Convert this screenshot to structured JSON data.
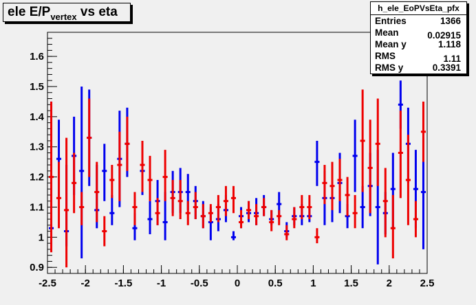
{
  "title": {
    "main": "ele E/P",
    "sub": "vertex",
    "suffix": " vs eta"
  },
  "stats": {
    "name": "h_ele_EoPVsEta_pfx",
    "rows": [
      {
        "label": "Entries",
        "value": "1366"
      },
      {
        "label": "Mean",
        "value": "0.02915"
      },
      {
        "label": "Mean y",
        "value": "1.118"
      },
      {
        "label": "RMS",
        "value": "1.11"
      },
      {
        "label": "RMS y",
        "value": "0.3391"
      }
    ]
  },
  "chart_data": {
    "type": "scatter",
    "xlim": [
      -2.5,
      2.5
    ],
    "ylim": [
      0.88,
      1.68
    ],
    "xticks": [
      -2.5,
      -2,
      -1.5,
      -1,
      -0.5,
      0,
      0.5,
      1,
      1.5,
      2,
      2.5
    ],
    "xtick_labels": [
      "-2.5",
      "-2",
      "-1.5",
      "-1",
      "-0.5",
      "0",
      "0.5",
      "1",
      "1.5",
      "2",
      "2.5"
    ],
    "yticks": [
      0.9,
      1,
      1.1,
      1.2,
      1.3,
      1.4,
      1.5,
      1.6
    ],
    "ytick_labels": [
      "0.9",
      "1",
      "1.1",
      "1.2",
      "1.3",
      "1.4",
      "1.5",
      "1.6"
    ],
    "colors": {
      "blue": "#0000ee",
      "red": "#ee0000",
      "frame_bg": "#f0f0f0"
    },
    "series": [
      {
        "color": "blue",
        "points": [
          {
            "x": -2.45,
            "y": 1.03,
            "lo": 0.97,
            "hi": 1.45
          },
          {
            "x": -2.35,
            "y": 1.26,
            "lo": 1.13,
            "hi": 1.39
          },
          {
            "x": -2.25,
            "y": 1.02,
            "lo": 0.97,
            "hi": 1.24
          },
          {
            "x": -2.15,
            "y": 1.27,
            "lo": 1.14,
            "hi": 1.4
          },
          {
            "x": -2.05,
            "y": 1.22,
            "lo": 0.93,
            "hi": 1.5
          },
          {
            "x": -1.95,
            "y": 1.33,
            "lo": 1.17,
            "hi": 1.49
          },
          {
            "x": -1.85,
            "y": 1.09,
            "lo": 1.03,
            "hi": 1.24
          },
          {
            "x": -1.75,
            "y": 1.22,
            "lo": 1.12,
            "hi": 1.31
          },
          {
            "x": -1.65,
            "y": 1.08,
            "lo": 1.04,
            "hi": 1.14
          },
          {
            "x": -1.55,
            "y": 1.26,
            "lo": 1.1,
            "hi": 1.42
          },
          {
            "x": -1.45,
            "y": 1.31,
            "lo": 1.2,
            "hi": 1.43
          },
          {
            "x": -1.35,
            "y": 1.03,
            "lo": 0.99,
            "hi": 1.08
          },
          {
            "x": -1.25,
            "y": 1.22,
            "lo": 1.14,
            "hi": 1.29
          },
          {
            "x": -1.15,
            "y": 1.06,
            "lo": 1.01,
            "hi": 1.12
          },
          {
            "x": -1.05,
            "y": 1.12,
            "lo": 1.04,
            "hi": 1.19
          },
          {
            "x": -0.95,
            "y": 1.05,
            "lo": 0.99,
            "hi": 1.15
          },
          {
            "x": -0.85,
            "y": 1.15,
            "lo": 1.08,
            "hi": 1.22
          },
          {
            "x": -0.75,
            "y": 1.15,
            "lo": 1.08,
            "hi": 1.23
          },
          {
            "x": -0.65,
            "y": 1.15,
            "lo": 1.09,
            "hi": 1.21
          },
          {
            "x": -0.55,
            "y": 1.12,
            "lo": 1.06,
            "hi": 1.17
          },
          {
            "x": -0.45,
            "y": 1.07,
            "lo": 1.03,
            "hi": 1.12
          },
          {
            "x": -0.35,
            "y": 1.05,
            "lo": 0.99,
            "hi": 1.1
          },
          {
            "x": -0.25,
            "y": 1.06,
            "lo": 1.02,
            "hi": 1.11
          },
          {
            "x": -0.15,
            "y": 1.09,
            "lo": 1.05,
            "hi": 1.14
          },
          {
            "x": -0.05,
            "y": 1.0,
            "lo": 0.99,
            "hi": 1.02
          },
          {
            "x": 0.05,
            "y": 1.07,
            "lo": 1.03,
            "hi": 1.1
          },
          {
            "x": 0.15,
            "y": 1.08,
            "lo": 1.05,
            "hi": 1.12
          },
          {
            "x": 0.25,
            "y": 1.08,
            "lo": 1.04,
            "hi": 1.13
          },
          {
            "x": 0.35,
            "y": 1.1,
            "lo": 1.07,
            "hi": 1.14
          },
          {
            "x": 0.45,
            "y": 1.06,
            "lo": 1.04,
            "hi": 1.09
          },
          {
            "x": 0.55,
            "y": 1.11,
            "lo": 1.06,
            "hi": 1.15
          },
          {
            "x": 0.65,
            "y": 1.02,
            "lo": 1.0,
            "hi": 1.05
          },
          {
            "x": 0.75,
            "y": 1.07,
            "lo": 1.04,
            "hi": 1.1
          },
          {
            "x": 0.85,
            "y": 1.07,
            "lo": 1.04,
            "hi": 1.11
          },
          {
            "x": 0.95,
            "y": 1.07,
            "lo": 1.05,
            "hi": 1.1
          },
          {
            "x": 1.05,
            "y": 1.25,
            "lo": 1.17,
            "hi": 1.32
          },
          {
            "x": 1.15,
            "y": 1.13,
            "lo": 1.04,
            "hi": 1.22
          },
          {
            "x": 1.25,
            "y": 1.13,
            "lo": 1.05,
            "hi": 1.22
          },
          {
            "x": 1.35,
            "y": 1.18,
            "lo": 1.08,
            "hi": 1.28
          },
          {
            "x": 1.45,
            "y": 1.07,
            "lo": 1.03,
            "hi": 1.11
          },
          {
            "x": 1.55,
            "y": 1.27,
            "lo": 1.15,
            "hi": 1.39
          },
          {
            "x": 1.65,
            "y": 1.1,
            "lo": 1.03,
            "hi": 1.17
          },
          {
            "x": 1.75,
            "y": 1.17,
            "lo": 1.07,
            "hi": 1.28
          },
          {
            "x": 1.85,
            "y": 1.1,
            "lo": 0.91,
            "hi": 1.29
          },
          {
            "x": 1.95,
            "y": 1.08,
            "lo": 1.01,
            "hi": 1.15
          },
          {
            "x": 2.05,
            "y": 1.16,
            "lo": 1.03,
            "hi": 1.28
          },
          {
            "x": 2.15,
            "y": 1.44,
            "lo": 1.36,
            "hi": 1.52
          },
          {
            "x": 2.25,
            "y": 1.31,
            "lo": 1.18,
            "hi": 1.43
          },
          {
            "x": 2.35,
            "y": 1.16,
            "lo": 1.03,
            "hi": 1.29
          },
          {
            "x": 2.45,
            "y": 1.15,
            "lo": 0.96,
            "hi": 1.33
          }
        ]
      },
      {
        "color": "red",
        "points": [
          {
            "x": -2.45,
            "y": 1.2,
            "lo": 0.95,
            "hi": 1.45
          },
          {
            "x": -2.35,
            "y": 1.13,
            "lo": 1.03,
            "hi": 1.25
          },
          {
            "x": -2.25,
            "y": 1.09,
            "lo": 0.9,
            "hi": 1.33
          },
          {
            "x": -2.15,
            "y": 1.18,
            "lo": 1.08,
            "hi": 1.28
          },
          {
            "x": -2.05,
            "y": 1.1,
            "lo": 1.04,
            "hi": 1.15
          },
          {
            "x": -1.95,
            "y": 1.33,
            "lo": 1.2,
            "hi": 1.46
          },
          {
            "x": -1.85,
            "y": 1.15,
            "lo": 1.05,
            "hi": 1.25
          },
          {
            "x": -1.75,
            "y": 1.02,
            "lo": 0.97,
            "hi": 1.07
          },
          {
            "x": -1.65,
            "y": 1.19,
            "lo": 1.13,
            "hi": 1.24
          },
          {
            "x": -1.55,
            "y": 1.24,
            "lo": 1.12,
            "hi": 1.35
          },
          {
            "x": -1.45,
            "y": 1.31,
            "lo": 1.22,
            "hi": 1.4
          },
          {
            "x": -1.35,
            "y": 1.1,
            "lo": 1.04,
            "hi": 1.15
          },
          {
            "x": -1.25,
            "y": 1.24,
            "lo": 1.15,
            "hi": 1.32
          },
          {
            "x": -1.15,
            "y": 1.19,
            "lo": 1.12,
            "hi": 1.27
          },
          {
            "x": -1.05,
            "y": 1.08,
            "lo": 1.04,
            "hi": 1.13
          },
          {
            "x": -0.95,
            "y": 1.2,
            "lo": 1.12,
            "hi": 1.29
          },
          {
            "x": -0.85,
            "y": 1.13,
            "lo": 1.07,
            "hi": 1.19
          },
          {
            "x": -0.75,
            "y": 1.12,
            "lo": 1.06,
            "hi": 1.19
          },
          {
            "x": -0.65,
            "y": 1.08,
            "lo": 1.04,
            "hi": 1.12
          },
          {
            "x": -0.55,
            "y": 1.1,
            "lo": 1.06,
            "hi": 1.15
          },
          {
            "x": -0.45,
            "y": 1.07,
            "lo": 1.03,
            "hi": 1.11
          },
          {
            "x": -0.35,
            "y": 1.08,
            "lo": 1.05,
            "hi": 1.11
          },
          {
            "x": -0.25,
            "y": 1.1,
            "lo": 1.05,
            "hi": 1.14
          },
          {
            "x": -0.15,
            "y": 1.12,
            "lo": 1.07,
            "hi": 1.17
          },
          {
            "x": -0.05,
            "y": 1.13,
            "lo": 1.08,
            "hi": 1.17
          },
          {
            "x": 0.05,
            "y": 1.05,
            "lo": 1.03,
            "hi": 1.09
          },
          {
            "x": 0.15,
            "y": 1.09,
            "lo": 1.06,
            "hi": 1.12
          },
          {
            "x": 0.25,
            "y": 1.07,
            "lo": 1.04,
            "hi": 1.11
          },
          {
            "x": 0.35,
            "y": 1.1,
            "lo": 1.07,
            "hi": 1.13
          },
          {
            "x": 0.45,
            "y": 1.05,
            "lo": 1.02,
            "hi": 1.09
          },
          {
            "x": 0.55,
            "y": 1.07,
            "lo": 1.04,
            "hi": 1.09
          },
          {
            "x": 0.65,
            "y": 1.01,
            "lo": 0.99,
            "hi": 1.04
          },
          {
            "x": 0.75,
            "y": 1.06,
            "lo": 1.03,
            "hi": 1.1
          },
          {
            "x": 0.85,
            "y": 1.1,
            "lo": 1.06,
            "hi": 1.14
          },
          {
            "x": 0.95,
            "y": 1.1,
            "lo": 1.06,
            "hi": 1.14
          },
          {
            "x": 1.05,
            "y": 1.0,
            "lo": 0.98,
            "hi": 1.03
          },
          {
            "x": 1.15,
            "y": 1.18,
            "lo": 1.11,
            "hi": 1.24
          },
          {
            "x": 1.25,
            "y": 1.17,
            "lo": 1.09,
            "hi": 1.25
          },
          {
            "x": 1.35,
            "y": 1.19,
            "lo": 1.12,
            "hi": 1.26
          },
          {
            "x": 1.45,
            "y": 1.14,
            "lo": 1.07,
            "hi": 1.2
          },
          {
            "x": 1.55,
            "y": 1.08,
            "lo": 1.03,
            "hi": 1.14
          },
          {
            "x": 1.65,
            "y": 1.32,
            "lo": 1.15,
            "hi": 1.49
          },
          {
            "x": 1.75,
            "y": 1.23,
            "lo": 1.08,
            "hi": 1.39
          },
          {
            "x": 1.85,
            "y": 1.31,
            "lo": 1.17,
            "hi": 1.46
          },
          {
            "x": 1.95,
            "y": 1.12,
            "lo": 1.0,
            "hi": 1.23
          },
          {
            "x": 2.05,
            "y": 1.03,
            "lo": 0.93,
            "hi": 1.14
          },
          {
            "x": 2.15,
            "y": 1.28,
            "lo": 1.13,
            "hi": 1.42
          },
          {
            "x": 2.25,
            "y": 1.19,
            "lo": 1.04,
            "hi": 1.34
          },
          {
            "x": 2.35,
            "y": 1.06,
            "lo": 1.0,
            "hi": 1.12
          },
          {
            "x": 2.45,
            "y": 1.35,
            "lo": 1.25,
            "hi": 1.45
          }
        ]
      }
    ]
  }
}
